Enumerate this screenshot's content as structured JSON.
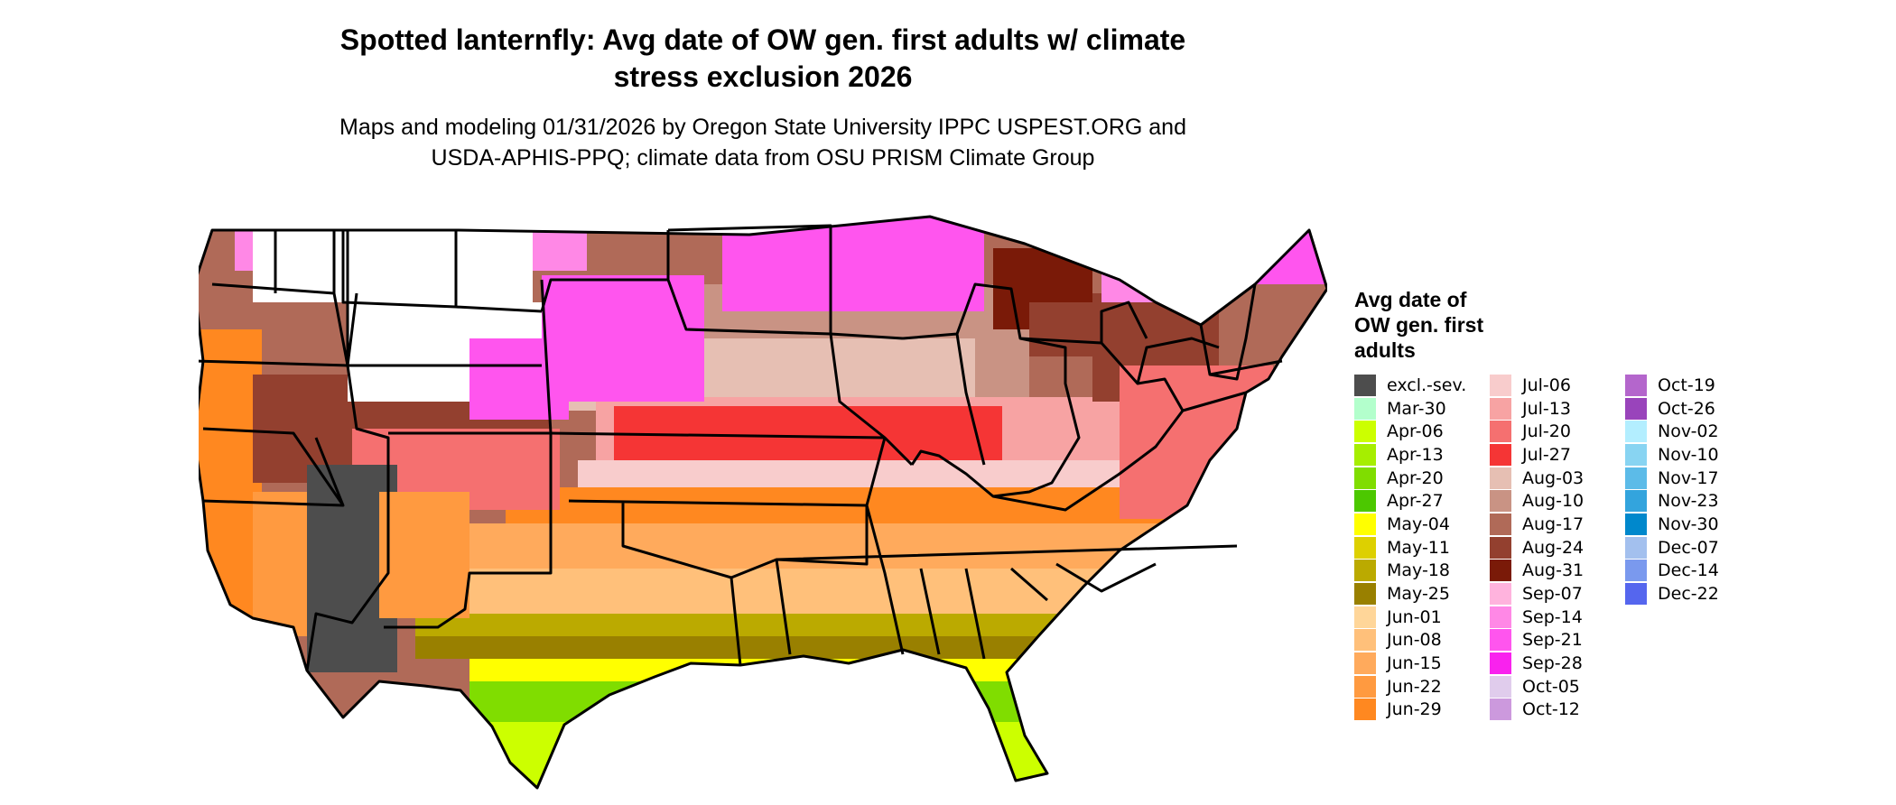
{
  "title": {
    "line1": "Spotted lanternfly: Avg date of OW gen. first adults w/ climate",
    "line2": "stress exclusion 2026"
  },
  "subtitle": {
    "line1": "Maps and modeling 01/31/2026 by Oregon State University IPPC USPEST.ORG and",
    "line2": "USDA-APHIS-PPQ; climate data from OSU PRISM Climate Group"
  },
  "legend": {
    "title_line1": "Avg date of",
    "title_line2": "OW gen. first",
    "title_line3": "adults",
    "columns": [
      [
        {
          "label": "excl.-sev.",
          "color": "#4d4d4d"
        },
        {
          "label": "Mar-30",
          "color": "#b3ffcc"
        },
        {
          "label": "Apr-06",
          "color": "#ccff00"
        },
        {
          "label": "Apr-13",
          "color": "#a6ee00"
        },
        {
          "label": "Apr-20",
          "color": "#80dd00"
        },
        {
          "label": "Apr-27",
          "color": "#4cc800"
        },
        {
          "label": "May-04",
          "color": "#ffff00"
        },
        {
          "label": "May-11",
          "color": "#ddd000"
        },
        {
          "label": "May-18",
          "color": "#bbaa00"
        },
        {
          "label": "May-25",
          "color": "#998000"
        },
        {
          "label": "Jun-01",
          "color": "#ffd699"
        },
        {
          "label": "Jun-08",
          "color": "#ffc07a"
        },
        {
          "label": "Jun-15",
          "color": "#ffaa5c"
        },
        {
          "label": "Jun-22",
          "color": "#ff9a40"
        },
        {
          "label": "Jun-29",
          "color": "#ff8820"
        }
      ],
      [
        {
          "label": "Jul-06",
          "color": "#f8cccc"
        },
        {
          "label": "Jul-13",
          "color": "#f7a3a3"
        },
        {
          "label": "Jul-20",
          "color": "#f57070"
        },
        {
          "label": "Jul-27",
          "color": "#f53535"
        },
        {
          "label": "Aug-03",
          "color": "#e6bfb3"
        },
        {
          "label": "Aug-10",
          "color": "#c99384"
        },
        {
          "label": "Aug-17",
          "color": "#b06a58"
        },
        {
          "label": "Aug-24",
          "color": "#93402f"
        },
        {
          "label": "Aug-31",
          "color": "#7a1a08"
        },
        {
          "label": "Sep-07",
          "color": "#ffb3dd"
        },
        {
          "label": "Sep-14",
          "color": "#ff88e6"
        },
        {
          "label": "Sep-21",
          "color": "#ff55ee"
        },
        {
          "label": "Sep-28",
          "color": "#f922ee"
        },
        {
          "label": "Oct-05",
          "color": "#e0ccec"
        },
        {
          "label": "Oct-12",
          "color": "#cc99dd"
        }
      ],
      [
        {
          "label": "Oct-19",
          "color": "#b466cc"
        },
        {
          "label": "Oct-26",
          "color": "#9944bb"
        },
        {
          "label": "Nov-02",
          "color": "#b3eeff"
        },
        {
          "label": "Nov-10",
          "color": "#88d4f2"
        },
        {
          "label": "Nov-17",
          "color": "#5cbbe8"
        },
        {
          "label": "Nov-23",
          "color": "#33a4dd"
        },
        {
          "label": "Nov-30",
          "color": "#0088cc"
        },
        {
          "label": "Dec-07",
          "color": "#a3c0ee"
        },
        {
          "label": "Dec-14",
          "color": "#7a99ee"
        },
        {
          "label": "Dec-22",
          "color": "#5566ee"
        }
      ]
    ]
  }
}
